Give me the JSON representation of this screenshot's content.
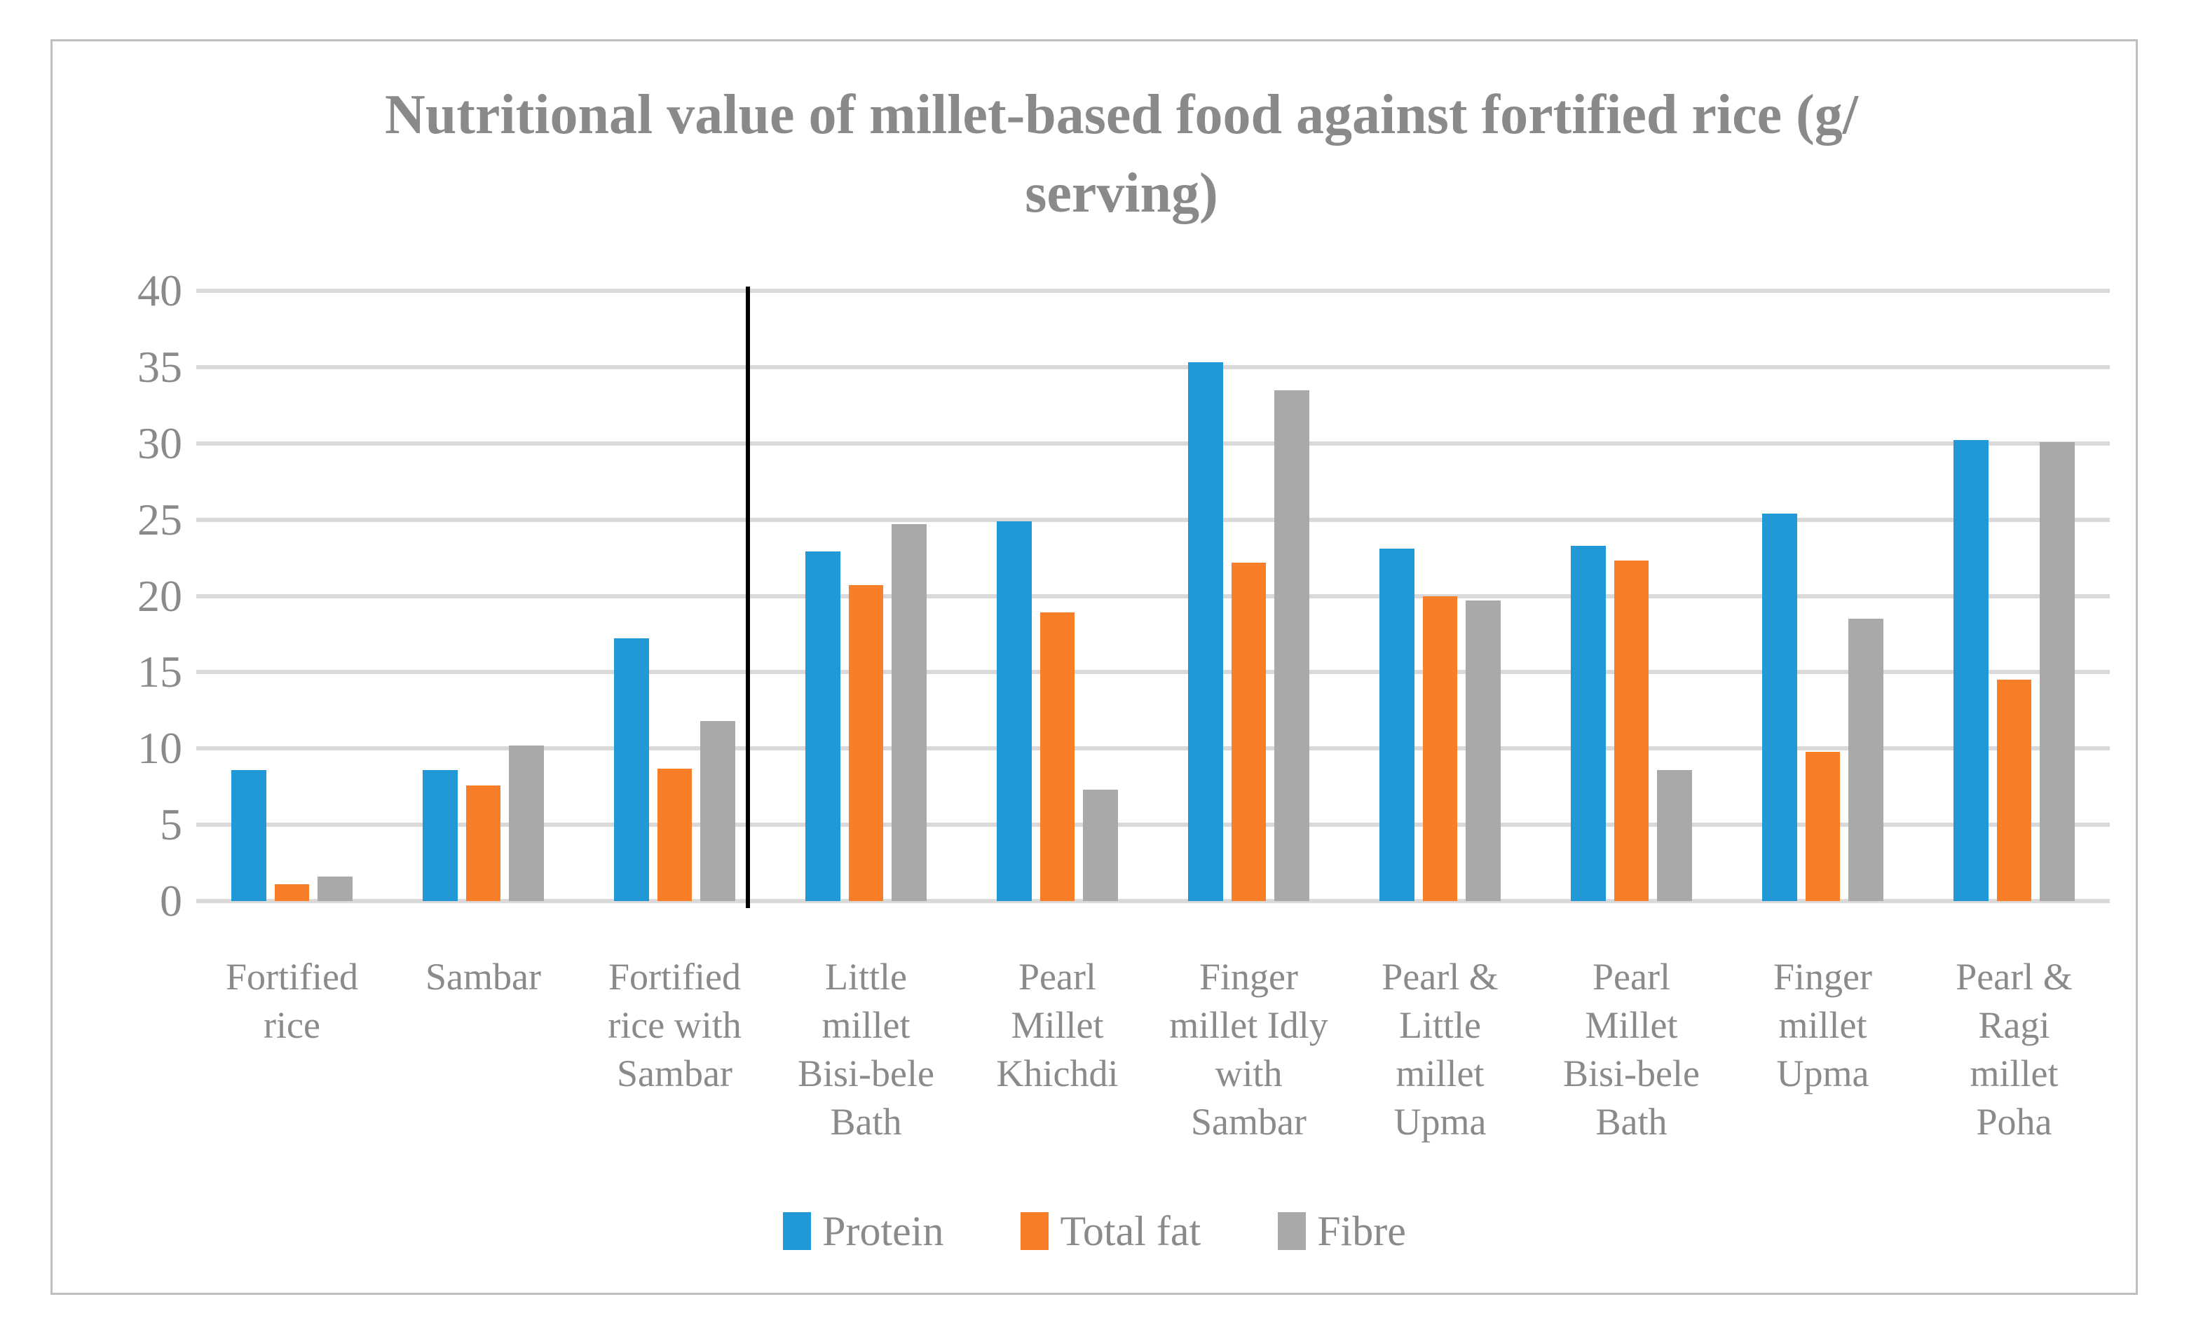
{
  "window": {
    "background_color": "#FFFFFF",
    "frame_border_color": "#BFBFBF"
  },
  "chart_data": {
    "type": "bar",
    "title": "Nutritional value of millet-based food against fortified rice (g/serving)",
    "title_lines": [
      "Nutritional value of millet-based food against fortified rice (g/",
      "serving)"
    ],
    "categories": [
      "Fortified rice",
      "Sambar",
      "Fortified rice with Sambar",
      "Little millet Bisi-bele Bath",
      "Pearl Millet Khichdi",
      "Finger millet Idly with Sambar",
      "Pearl & Little millet Upma",
      "Pearl Millet Bisi-bele Bath",
      "Finger millet Upma",
      "Pearl & Ragi millet Poha"
    ],
    "series": [
      {
        "name": "Protein",
        "color": "#2199D6",
        "values": [
          8.6,
          8.6,
          17.2,
          22.9,
          24.9,
          35.3,
          23.1,
          23.3,
          25.4,
          30.2
        ]
      },
      {
        "name": "Total fat",
        "color": "#F97E29",
        "values": [
          1.1,
          7.6,
          8.7,
          20.7,
          18.9,
          22.2,
          20.0,
          22.3,
          9.8,
          14.5
        ]
      },
      {
        "name": "Fibre",
        "color": "#A9A9A9",
        "values": [
          1.6,
          10.2,
          11.8,
          24.7,
          7.3,
          33.5,
          19.7,
          8.6,
          18.5,
          30.1
        ]
      }
    ],
    "xlabel": "",
    "ylabel": "",
    "ylim": [
      0,
      40
    ],
    "yticks": [
      0,
      5,
      10,
      15,
      20,
      25,
      30,
      35,
      40
    ],
    "grid": "horizontal",
    "gridline_color": "#D9D9D9",
    "text_color": "#8A8A8A",
    "legend_position": "bottom",
    "annotations": {
      "divider_after_category": "Fortified rice with Sambar",
      "divider_color": "#000000"
    }
  }
}
